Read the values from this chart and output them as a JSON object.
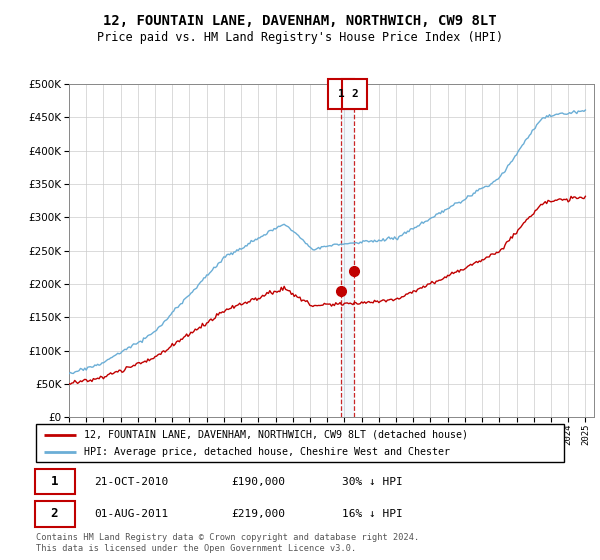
{
  "title": "12, FOUNTAIN LANE, DAVENHAM, NORTHWICH, CW9 8LT",
  "subtitle": "Price paid vs. HM Land Registry's House Price Index (HPI)",
  "legend_line1": "12, FOUNTAIN LANE, DAVENHAM, NORTHWICH, CW9 8LT (detached house)",
  "legend_line2": "HPI: Average price, detached house, Cheshire West and Chester",
  "transaction1_label": "1",
  "transaction1_date": "21-OCT-2010",
  "transaction1_price": "£190,000",
  "transaction1_hpi": "30% ↓ HPI",
  "transaction2_label": "2",
  "transaction2_date": "01-AUG-2011",
  "transaction2_price": "£219,000",
  "transaction2_hpi": "16% ↓ HPI",
  "footer": "Contains HM Land Registry data © Crown copyright and database right 2024.\nThis data is licensed under the Open Government Licence v3.0.",
  "hpi_color": "#6baed6",
  "price_color": "#c00000",
  "marker1_year": 2010.8,
  "marker2_year": 2011.58,
  "marker1_y": 190000,
  "marker2_y": 219000,
  "ylim": [
    0,
    500000
  ],
  "xlim_start": 1995,
  "xlim_end": 2025.5,
  "bg_color": "#ffffff",
  "grid_color": "#cccccc"
}
